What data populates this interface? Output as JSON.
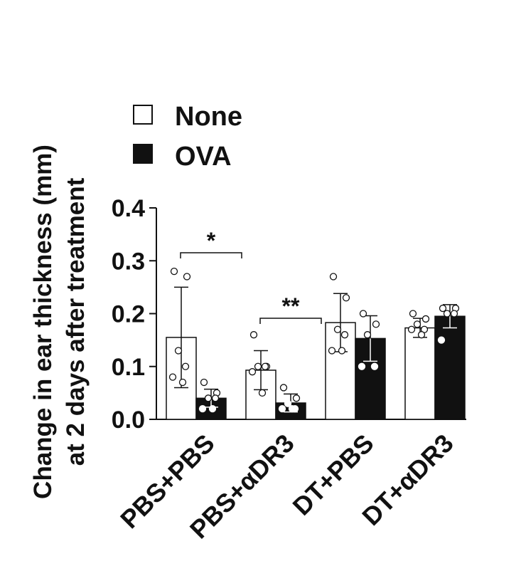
{
  "chart_data": {
    "type": "bar",
    "ylabel_line1": "Change in ear thickness (mm)",
    "ylabel_line2": "at 2 days after treatment",
    "ylim": [
      0,
      0.4
    ],
    "yticks": [
      "0.0",
      "0.1",
      "0.2",
      "0.3",
      "0.4"
    ],
    "grid": false,
    "legend_position": "top-left",
    "categories": [
      "PBS+PBS",
      "PBS+αDR3",
      "DT+PBS",
      "DT+αDR3"
    ],
    "series": [
      {
        "name": "None",
        "color": "#ffffff",
        "values": [
          0.155,
          0.093,
          0.183,
          0.173
        ],
        "errors": [
          0.095,
          0.037,
          0.055,
          0.018
        ],
        "points": [
          [
            0.28,
            0.27,
            0.13,
            0.1,
            0.08,
            0.07
          ],
          [
            0.16,
            0.1,
            0.1,
            0.1,
            0.09,
            0.05
          ],
          [
            0.27,
            0.23,
            0.17,
            0.16,
            0.13,
            0.13
          ],
          [
            0.2,
            0.19,
            0.18,
            0.17,
            0.17,
            0.16
          ]
        ]
      },
      {
        "name": "OVA",
        "color": "#111111",
        "values": [
          0.04,
          0.031,
          0.153,
          0.195
        ],
        "errors": [
          0.017,
          0.017,
          0.043,
          0.022
        ],
        "points": [
          [
            0.07,
            0.05,
            0.04,
            0.04,
            0.02,
            0.02
          ],
          [
            0.06,
            0.04,
            0.03,
            0.02,
            0.02,
            0.02
          ],
          [
            0.2,
            0.18,
            0.16,
            0.1,
            0.1
          ],
          [
            0.21,
            0.21,
            0.2,
            0.2,
            0.15
          ]
        ]
      }
    ],
    "significance": [
      {
        "group": 0,
        "label": "*"
      },
      {
        "group": 1,
        "label": "**"
      }
    ]
  }
}
